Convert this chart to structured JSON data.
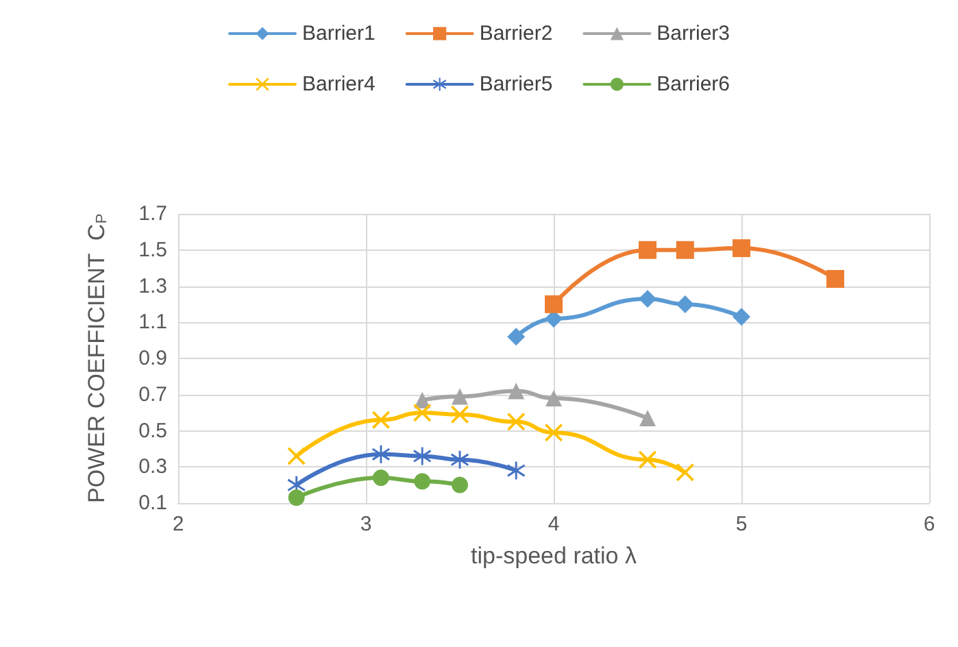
{
  "chart_data": {
    "type": "line",
    "xlabel": "tip-speed ratio λ",
    "ylabel": "POWER COEFFICIENT  C$_{P}$",
    "xlim": [
      2,
      6
    ],
    "xticks": [
      2,
      3,
      4,
      5,
      6
    ],
    "ylim": [
      0.1,
      1.7
    ],
    "yticks": [
      0.1,
      0.3,
      0.5,
      0.7,
      0.9,
      1.1,
      1.3,
      1.5,
      1.7
    ],
    "grid": true,
    "legend": "top",
    "series": [
      {
        "name": "Barrier1",
        "color": "#5b9bd5",
        "marker": "diamond",
        "x": [
          3.8,
          4,
          4.5,
          4.7,
          5
        ],
        "values": [
          1.02,
          1.12,
          1.23,
          1.2,
          1.13
        ]
      },
      {
        "name": "Barrier2",
        "color": "#ed7d31",
        "marker": "square",
        "x": [
          4,
          4.5,
          4.7,
          5,
          5.5
        ],
        "values": [
          1.2,
          1.5,
          1.5,
          1.51,
          1.34
        ]
      },
      {
        "name": "Barrier3",
        "color": "#a5a5a5",
        "marker": "triangle",
        "x": [
          3.3,
          3.5,
          3.8,
          4,
          4.5
        ],
        "values": [
          0.67,
          0.69,
          0.72,
          0.68,
          0.57
        ]
      },
      {
        "name": "Barrier4",
        "color": "#ffc000",
        "marker": "cross",
        "x": [
          2.63,
          3.08,
          3.3,
          3.5,
          3.8,
          4,
          4.5,
          4.7
        ],
        "values": [
          0.36,
          0.56,
          0.6,
          0.59,
          0.55,
          0.49,
          0.34,
          0.27
        ]
      },
      {
        "name": "Barrier5",
        "color": "#4472c4",
        "marker": "star",
        "x": [
          2.63,
          3.08,
          3.3,
          3.5,
          3.8
        ],
        "values": [
          0.2,
          0.37,
          0.36,
          0.34,
          0.28
        ]
      },
      {
        "name": "Barrier6",
        "color": "#70ad47",
        "marker": "circle",
        "x": [
          2.63,
          3.08,
          3.3,
          3.5
        ],
        "values": [
          0.13,
          0.24,
          0.22,
          0.2
        ]
      }
    ]
  }
}
